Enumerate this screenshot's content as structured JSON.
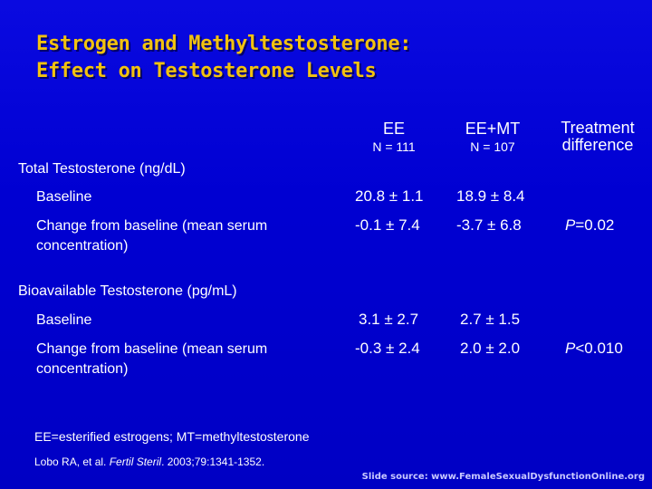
{
  "slide": {
    "title_line1": "Estrogen and Methyltestosterone:",
    "title_line2": "Effect on Testosterone Levels"
  },
  "columns": {
    "ee_label": "EE",
    "ee_n": "N = 111",
    "eemt_label": "EE+MT",
    "eemt_n": "N = 107",
    "diff_line1": "Treatment",
    "diff_line2": "difference"
  },
  "sections": [
    {
      "heading": "Total Testosterone (ng/dL)",
      "rows": [
        {
          "label_line1": "Baseline",
          "label_line2": "",
          "ee": "20.8 ± 1.1",
          "eemt": "18.9 ± 8.4",
          "p_prefix": "",
          "p_value": ""
        },
        {
          "label_line1": "Change from baseline (mean serum",
          "label_line2": "concentration)",
          "ee": "-0.1 ± 7.4",
          "eemt": "-3.7 ± 6.8",
          "p_prefix": "P",
          "p_value": "=0.02"
        }
      ]
    },
    {
      "heading": "Bioavailable Testosterone (pg/mL)",
      "rows": [
        {
          "label_line1": "Baseline",
          "label_line2": "",
          "ee": "3.1 ± 2.7",
          "eemt": "2.7 ± 1.5",
          "p_prefix": "",
          "p_value": ""
        },
        {
          "label_line1": "Change from baseline (mean serum",
          "label_line2": "concentration)",
          "ee": "-0.3 ± 2.4",
          "eemt": "2.0 ± 2.0",
          "p_prefix": "P",
          "p_value": "<0.010"
        }
      ]
    }
  ],
  "footnote": "EE=esterified estrogens; MT=methyltestosterone",
  "citation": {
    "before": "Lobo RA, et al. ",
    "journal": "Fertil Steril",
    "after": ". 2003;79:1341-1352."
  },
  "source": "Slide source: www.FemaleSexualDysfunctionOnline.org",
  "colors": {
    "background": "#0000d4",
    "title": "#f2c20f",
    "text": "#ffffff"
  }
}
